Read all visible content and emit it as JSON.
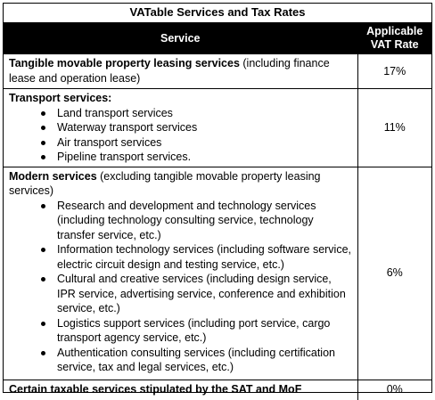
{
  "table_title": "VATable Services and Tax Rates",
  "header": {
    "service": "Service",
    "rate_line1": "Applicable",
    "rate_line2": "VAT Rate"
  },
  "rows": [
    {
      "bold": "Tangible movable property leasing services",
      "normal": " (including finance lease and operation lease)",
      "items": [],
      "rate": "17%"
    },
    {
      "bold": "Transport services:",
      "normal": "",
      "items": [
        "Land transport services",
        "Waterway transport services",
        "Air transport services",
        "Pipeline transport services."
      ],
      "rate": "11%"
    },
    {
      "bold": "Modern services",
      "normal": " (excluding tangible movable property leasing services)",
      "items": [
        "Research and development and technology services (including technology consulting service, technology transfer service, etc.)",
        "Information technology services (including software service, electric circuit design and testing service, etc.)",
        "Cultural and creative services (including design service, IPR service, advertising service, conference and exhibition service, etc.)",
        "Logistics support services (including port service, cargo transport agency service, etc.)",
        "Authentication consulting services (including certification service, tax and legal services, etc.)"
      ],
      "rate": "6%"
    },
    {
      "bold": "Certain taxable services stipulated by the SAT and MoF",
      "normal": "",
      "items": [],
      "rate": "0%"
    }
  ]
}
